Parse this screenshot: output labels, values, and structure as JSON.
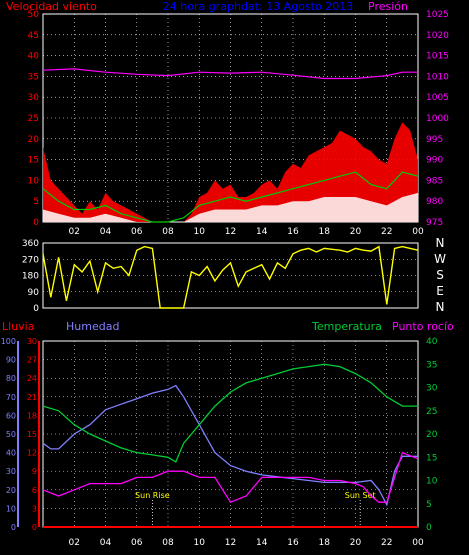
{
  "chart_data": [
    {
      "type": "line",
      "panel": "wind-pressure",
      "title": "24 hora graphdat: 13 Agosto 2013",
      "left_label": "Velocidad viento",
      "right_label": "Presión",
      "colors": {
        "title": "#0000ff",
        "speed": "#ff0000",
        "gust": "#00cc00",
        "avg": "#ffffff",
        "pressure": "#ff00ff"
      },
      "xticks": [
        "02",
        "04",
        "06",
        "08",
        "10",
        "12",
        "14",
        "16",
        "18",
        "20",
        "22",
        "00"
      ],
      "yleft": {
        "ticks": [
          0,
          5,
          10,
          15,
          20,
          25,
          30,
          35,
          40,
          45,
          50
        ],
        "lim": [
          0,
          50
        ]
      },
      "yright": {
        "ticks": [
          975,
          980,
          985,
          990,
          995,
          1000,
          1005,
          1010,
          1015,
          1020,
          1025
        ],
        "lim": [
          975,
          1025
        ]
      },
      "grid": true,
      "series": [
        {
          "id": "speed",
          "x": [
            0,
            0.5,
            1,
            1.5,
            2,
            2.5,
            3,
            3.5,
            4,
            4.5,
            5,
            5.5,
            6,
            6.5,
            7,
            7.5,
            8,
            8.5,
            9,
            9.5,
            10,
            10.5,
            11,
            11.5,
            12,
            12.5,
            13,
            13.5,
            14,
            14.5,
            15,
            15.5,
            16,
            16.5,
            17,
            17.5,
            18,
            18.5,
            19,
            19.5,
            20,
            20.5,
            21,
            21.5,
            22,
            22.5,
            23,
            23.5,
            24
          ],
          "values": [
            18,
            10,
            8,
            6,
            4,
            2,
            5,
            3,
            7,
            5,
            4,
            3,
            2,
            1,
            0,
            0,
            0,
            0,
            0,
            2,
            6,
            7,
            10,
            8,
            9,
            6,
            6,
            7,
            9,
            10,
            8,
            12,
            14,
            13,
            16,
            17,
            18,
            19,
            22,
            21,
            20,
            18,
            17,
            15,
            14,
            20,
            24,
            22,
            15
          ]
        },
        {
          "id": "gust",
          "x": [
            0,
            1,
            2,
            3,
            4,
            5,
            6,
            7,
            8,
            9,
            10,
            11,
            12,
            13,
            14,
            15,
            16,
            17,
            18,
            19,
            20,
            21,
            22,
            23,
            24
          ],
          "values": [
            8,
            5,
            3,
            3,
            4,
            2,
            1,
            0,
            0,
            1,
            4,
            5,
            6,
            5,
            6,
            7,
            8,
            9,
            10,
            11,
            12,
            9,
            8,
            12,
            11
          ]
        },
        {
          "id": "avg",
          "x": [
            0,
            1,
            2,
            3,
            4,
            5,
            6,
            7,
            8,
            9,
            10,
            11,
            12,
            13,
            14,
            15,
            16,
            17,
            18,
            19,
            20,
            21,
            22,
            23,
            24
          ],
          "values": [
            3,
            2,
            1,
            1,
            2,
            1,
            0,
            0,
            0,
            0,
            2,
            3,
            3,
            3,
            4,
            4,
            5,
            5,
            6,
            6,
            6,
            5,
            4,
            6,
            7
          ]
        },
        {
          "id": "pressure",
          "x": [
            0,
            2,
            4,
            6,
            8,
            10,
            12,
            14,
            16,
            18,
            20,
            22,
            23,
            24
          ],
          "values": [
            1011.5,
            1011.8,
            1011,
            1010.5,
            1010.2,
            1011,
            1010.8,
            1011,
            1010.3,
            1009.5,
            1009.5,
            1010.2,
            1011,
            1011
          ]
        }
      ]
    },
    {
      "type": "scatter",
      "panel": "wind-direction",
      "color": "#ffff00",
      "yticks": [
        0,
        90,
        180,
        270,
        360
      ],
      "ylim": [
        0,
        360
      ],
      "compass_labels": [
        "N",
        "W",
        "S",
        "E",
        "N"
      ],
      "series": [
        {
          "x": [
            0,
            0.5,
            1,
            1.5,
            2,
            2.5,
            3,
            3.5,
            4,
            4.5,
            5,
            5.5,
            6,
            6.5,
            7,
            7.5,
            8,
            8.5,
            9,
            9.5,
            10,
            10.5,
            11,
            11.5,
            12,
            12.5,
            13,
            13.5,
            14,
            14.5,
            15,
            15.5,
            16,
            16.5,
            17,
            17.5,
            18,
            18.5,
            19,
            19.5,
            20,
            20.5,
            21,
            21.5,
            22,
            22.5,
            23,
            23.5,
            24
          ],
          "values": [
            300,
            60,
            280,
            40,
            240,
            200,
            260,
            90,
            250,
            220,
            230,
            180,
            320,
            340,
            330,
            0,
            0,
            0,
            0,
            200,
            180,
            230,
            150,
            210,
            250,
            120,
            200,
            220,
            240,
            160,
            250,
            220,
            300,
            320,
            330,
            310,
            330,
            325,
            320,
            310,
            330,
            320,
            315,
            340,
            20,
            330,
            340,
            330,
            320
          ]
        }
      ]
    },
    {
      "type": "line",
      "panel": "temp-humidity",
      "labels": {
        "rain": "Lluvia",
        "humidity": "Humedad",
        "temperature": "Temperatura",
        "dewpoint": "Punto rocío"
      },
      "colors": {
        "rain": "#ff0000",
        "humidity": "#8080ff",
        "temperature": "#00cc33",
        "dewpoint": "#ff00ff",
        "right_axis": "#00cc33"
      },
      "xticks": [
        "02",
        "04",
        "06",
        "08",
        "10",
        "12",
        "14",
        "16",
        "18",
        "20",
        "22",
        "00"
      ],
      "y_rain": {
        "ticks": [
          0,
          10,
          20,
          30,
          40,
          50,
          60,
          70,
          80,
          90,
          100
        ],
        "lim": [
          0,
          100
        ]
      },
      "y_humidity": {
        "ticks": [
          0,
          3,
          6,
          9,
          12,
          15,
          18,
          21,
          24,
          27,
          30
        ],
        "lim": [
          0,
          30
        ]
      },
      "y_temp": {
        "ticks": [
          0,
          5,
          10,
          15,
          20,
          25,
          30,
          35,
          40
        ],
        "lim": [
          0,
          40
        ]
      },
      "annotations": [
        {
          "x": 7,
          "text": "Sun Rise"
        },
        {
          "x": 20.3,
          "text": "Sun Set"
        }
      ],
      "grid": true,
      "series": [
        {
          "id": "humidity",
          "x": [
            0,
            0.5,
            1,
            2,
            3,
            4,
            5,
            6,
            7,
            8,
            8.5,
            9,
            10,
            11,
            12,
            13,
            14,
            15,
            16,
            17,
            18,
            19,
            20,
            21,
            21.5,
            22,
            22.5,
            23,
            24
          ],
          "values": [
            45,
            42,
            42,
            50,
            55,
            63,
            66,
            69,
            72,
            74,
            76,
            70,
            55,
            40,
            33,
            30,
            28,
            27,
            26,
            25,
            24,
            24,
            24,
            25,
            20,
            12,
            30,
            38,
            38
          ]
        },
        {
          "id": "temperature",
          "x": [
            0,
            1,
            2,
            3,
            4,
            5,
            6,
            7,
            8,
            8.5,
            9,
            10,
            11,
            12,
            13,
            14,
            15,
            16,
            17,
            18,
            19,
            20,
            21,
            22,
            23,
            24
          ],
          "values": [
            26,
            25,
            22,
            20,
            18.5,
            17,
            16,
            15.5,
            15,
            14,
            18,
            22,
            26,
            29,
            31,
            32,
            33,
            34,
            34.5,
            35,
            34.5,
            33,
            31,
            28,
            26,
            26
          ]
        },
        {
          "id": "dewpoint",
          "x": [
            0,
            1,
            2,
            3,
            4,
            5,
            6,
            7,
            8,
            9,
            10,
            11,
            11.5,
            12,
            13,
            14,
            15,
            16,
            17,
            18,
            19,
            20,
            20.5,
            21,
            21.5,
            22,
            22.5,
            23,
            24
          ],
          "values": [
            6,
            5,
            6,
            7,
            7,
            7,
            8,
            8,
            9,
            9,
            8,
            8,
            6,
            4,
            5,
            8,
            8,
            8,
            8,
            7.5,
            7.5,
            7,
            6.5,
            5,
            4,
            4,
            8,
            12,
            11
          ]
        },
        {
          "id": "rain",
          "x": [
            0,
            24
          ],
          "values": [
            0,
            0
          ]
        }
      ]
    }
  ]
}
